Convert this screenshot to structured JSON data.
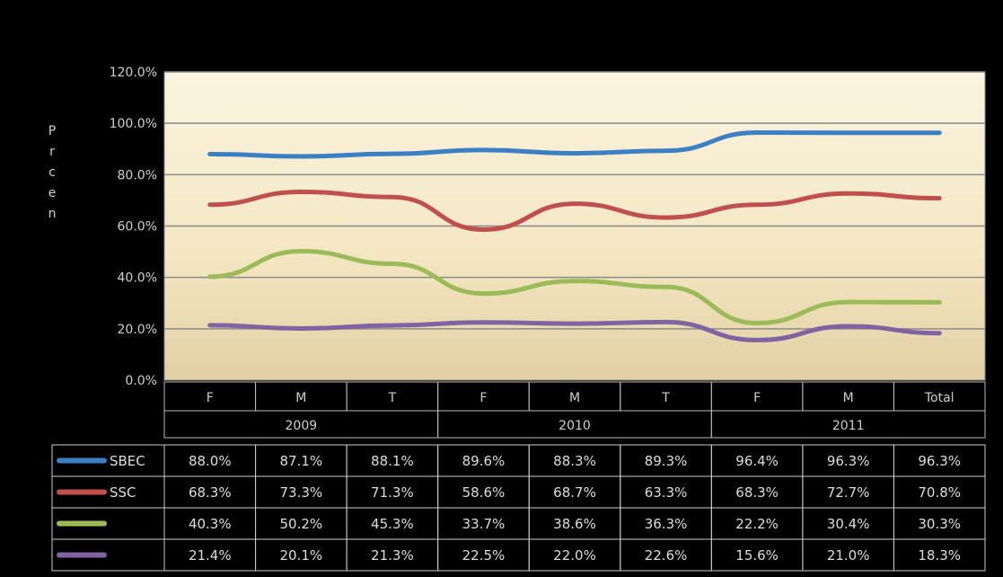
{
  "chart_data": {
    "type": "line",
    "title": "",
    "ylabel": "P r c e n",
    "ylim": [
      0,
      120
    ],
    "y_ticks": [
      "0.0%",
      "20.0%",
      "40.0%",
      "60.0%",
      "80.0%",
      "100.0%",
      "120.0%"
    ],
    "categories": [
      "F",
      "M",
      "T",
      "F",
      "M",
      "T",
      "F",
      "M",
      "Total"
    ],
    "groups": [
      "2009",
      "2010",
      "2011"
    ],
    "series": [
      {
        "name": "SBEC",
        "color": "#3b7fc4",
        "values": [
          88.0,
          87.1,
          88.1,
          89.6,
          88.3,
          89.3,
          96.4,
          96.3,
          96.3
        ],
        "labels": [
          "88.0%",
          "87.1%",
          "88.1%",
          "89.6%",
          "88.3%",
          "89.3%",
          "96.4%",
          "96.3%",
          "96.3%"
        ]
      },
      {
        "name": "SSC",
        "color": "#c0504d",
        "values": [
          68.3,
          73.3,
          71.3,
          58.6,
          68.7,
          63.3,
          68.3,
          72.7,
          70.8
        ],
        "labels": [
          "68.3%",
          "73.3%",
          "71.3%",
          "58.6%",
          "68.7%",
          "63.3%",
          "68.3%",
          "72.7%",
          "70.8%"
        ]
      },
      {
        "name": "",
        "color": "#9bbb59",
        "values": [
          40.3,
          50.2,
          45.3,
          33.7,
          38.6,
          36.3,
          22.2,
          30.4,
          30.3
        ],
        "labels": [
          "40.3%",
          "50.2%",
          "45.3%",
          "33.7%",
          "38.6%",
          "36.3%",
          "22.2%",
          "30.4%",
          "30.3%"
        ]
      },
      {
        "name": "",
        "color": "#8064a2",
        "values": [
          21.4,
          20.1,
          21.3,
          22.5,
          22.0,
          22.6,
          15.6,
          21.0,
          18.3
        ],
        "labels": [
          "21.4%",
          "20.1%",
          "21.3%",
          "22.5%",
          "22.0%",
          "22.6%",
          "15.6%",
          "21.0%",
          "18.3%"
        ]
      }
    ]
  }
}
